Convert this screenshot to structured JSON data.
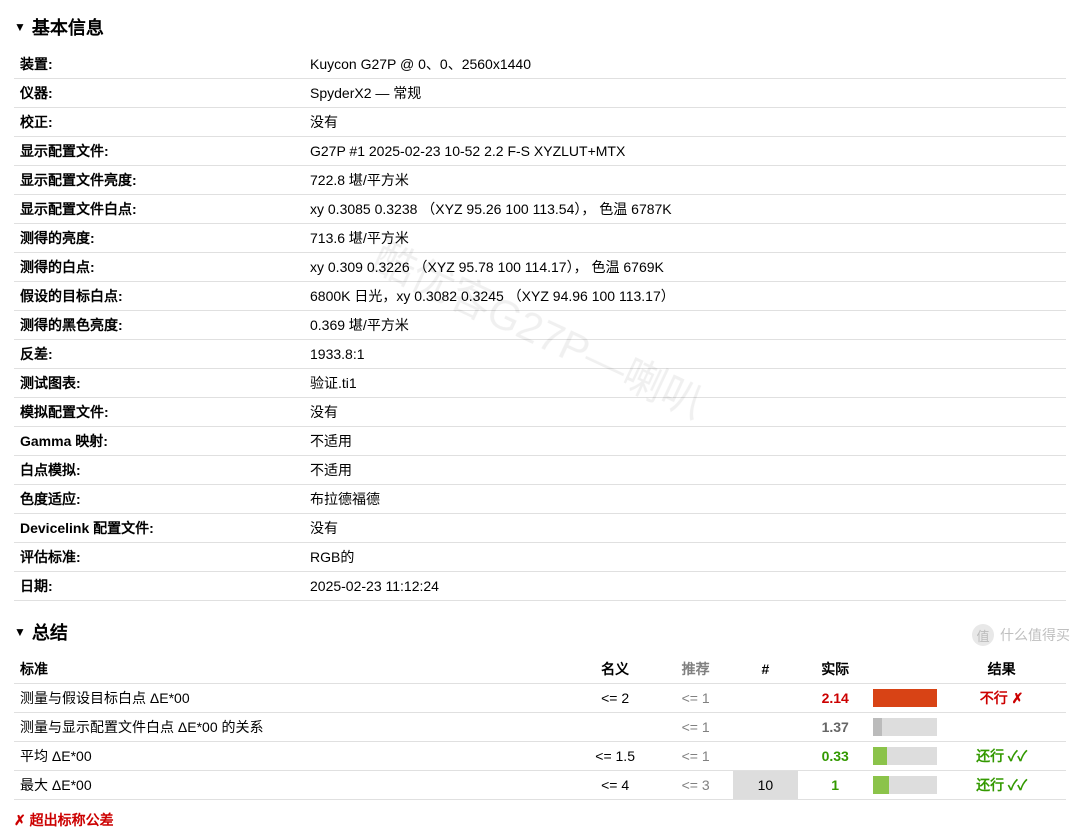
{
  "sections": {
    "basic_info_title": "基本信息",
    "summary_title": "总结"
  },
  "info_rows": [
    {
      "label": "装置:",
      "value": "Kuycon G27P @ 0、0、2560x1440"
    },
    {
      "label": "仪器:",
      "value": "SpyderX2 — 常规"
    },
    {
      "label": "校正:",
      "value": "没有"
    },
    {
      "label": "显示配置文件:",
      "value": "G27P #1 2025-02-23 10-52 2.2 F-S XYZLUT+MTX"
    },
    {
      "label": "显示配置文件亮度:",
      "value": "722.8 堪/平方米"
    },
    {
      "label": "显示配置文件白点:",
      "value": "xy 0.3085 0.3238 （XYZ 95.26 100 113.54）， 色温 6787K"
    },
    {
      "label": "测得的亮度:",
      "value": "713.6 堪/平方米"
    },
    {
      "label": "测得的白点:",
      "value": "xy 0.309 0.3226 （XYZ 95.78 100 114.17）， 色温 6769K"
    },
    {
      "label": "假设的目标白点:",
      "value": "6800K 日光，xy 0.3082 0.3245 （XYZ 94.96 100 113.17）"
    },
    {
      "label": "测得的黑色亮度:",
      "value": "0.369 堪/平方米"
    },
    {
      "label": "反差:",
      "value": "1933.8:1"
    },
    {
      "label": "测试图表:",
      "value": "验证.ti1"
    },
    {
      "label": "模拟配置文件:",
      "value": "没有"
    },
    {
      "label": "Gamma 映射:",
      "value": "不适用"
    },
    {
      "label": "白点模拟:",
      "value": "不适用"
    },
    {
      "label": "色度适应:",
      "value": "布拉德福德"
    },
    {
      "label": "Devicelink 配置文件:",
      "value": "没有"
    },
    {
      "label": "评估标准:",
      "value": "RGB的"
    },
    {
      "label": "日期:",
      "value": "2025-02-23 11:12:24"
    }
  ],
  "summary": {
    "headers": {
      "criteria": "标准",
      "nominal": "名义",
      "recommended": "推荐",
      "hash": "#",
      "actual": "实际",
      "result": "结果"
    },
    "rows": [
      {
        "criteria": "测量与假设目标白点 ΔE*00",
        "nominal": "<= 2",
        "recommended": "<= 1",
        "hash": "",
        "actual": "2.14",
        "actual_color": "#cc0000",
        "bar_pct": 100,
        "bar_color": "#d84315",
        "bar_bg": "#d84315",
        "result": "不行 ✗",
        "result_class": "fail-text"
      },
      {
        "criteria": "测量与显示配置文件白点 ΔE*00 的关系",
        "nominal": "",
        "recommended": "<= 1",
        "hash": "",
        "actual": "1.37",
        "actual_color": "#666",
        "bar_pct": 15,
        "bar_color": "#bbb",
        "bar_bg": "#ddd",
        "result": "",
        "result_class": "neutral-text"
      },
      {
        "criteria": "平均 ΔE*00",
        "nominal": "<= 1.5",
        "recommended": "<= 1",
        "hash": "",
        "actual": "0.33",
        "actual_color": "#339900",
        "bar_pct": 22,
        "bar_color": "#8bc34a",
        "bar_bg": "#ddd",
        "result": "还行 ✓✓",
        "result_class": "ok-text"
      },
      {
        "criteria": "最大 ΔE*00",
        "nominal": "<= 4",
        "recommended": "<= 3",
        "hash": "10",
        "actual": "1",
        "actual_color": "#339900",
        "bar_pct": 25,
        "bar_color": "#8bc34a",
        "bar_bg": "#ddd",
        "result": "还行 ✓✓",
        "result_class": "ok-text"
      }
    ]
  },
  "footer_note": "✗ 超出标称公差",
  "bottom_watermark": "什么值得买",
  "diag_watermark": "酷优客G27P—喇叭"
}
